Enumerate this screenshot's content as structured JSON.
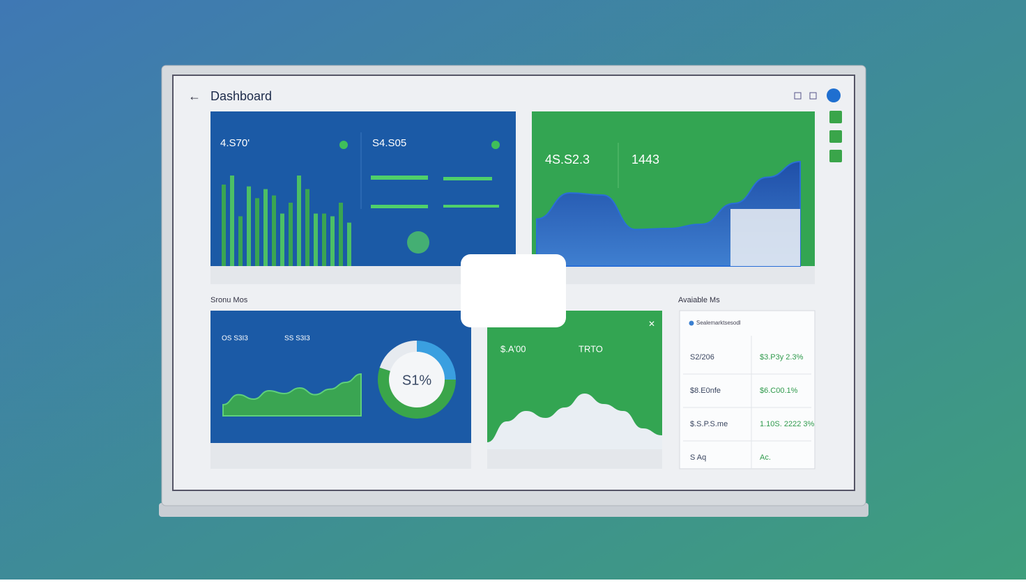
{
  "header": {
    "title": "Dashboard"
  },
  "sales_panel": {
    "metric_1": "4.S70'",
    "metric_2": "S4.S05",
    "bars": [
      90,
      100,
      55,
      88,
      75,
      85,
      78,
      58,
      70,
      100,
      85,
      58,
      58,
      55,
      70,
      48
    ]
  },
  "trend_panel": {
    "metric_1": "4S.S2.3",
    "metric_2": "1443",
    "line_values": [
      45,
      70,
      68,
      35,
      36,
      40,
      60,
      85,
      100
    ]
  },
  "sections": {
    "left": "Sronu Mos",
    "right": "Avaiable Ms"
  },
  "donut_panel": {
    "metric_1": "OS S3I3",
    "metric_2": "SS S3I3",
    "center_label": "S1%",
    "segments": [
      {
        "color": "#3a9fe0",
        "value": 25
      },
      {
        "color": "#3aa54a",
        "value": 55
      },
      {
        "color": "#e6eaef",
        "value": 20
      }
    ],
    "line_values": [
      20,
      38,
      30,
      45,
      40,
      50,
      38,
      48,
      60,
      75
    ]
  },
  "wave_panel": {
    "metric_1": "$.A'00",
    "metric_2": "TRTO",
    "wave_values": [
      10,
      40,
      55,
      45,
      60,
      80,
      65,
      55,
      30,
      20
    ]
  },
  "table": {
    "title": "Sealemarktsesodl",
    "rows": [
      [
        "S2/206",
        "$3.P3y 2.3%"
      ],
      [
        "$8.E0nfe",
        "$6.C00.1%"
      ],
      [
        "$.S.P.S.me",
        "1.10S. 2222 3%"
      ],
      [
        "S Aq",
        "Ac."
      ]
    ]
  }
}
